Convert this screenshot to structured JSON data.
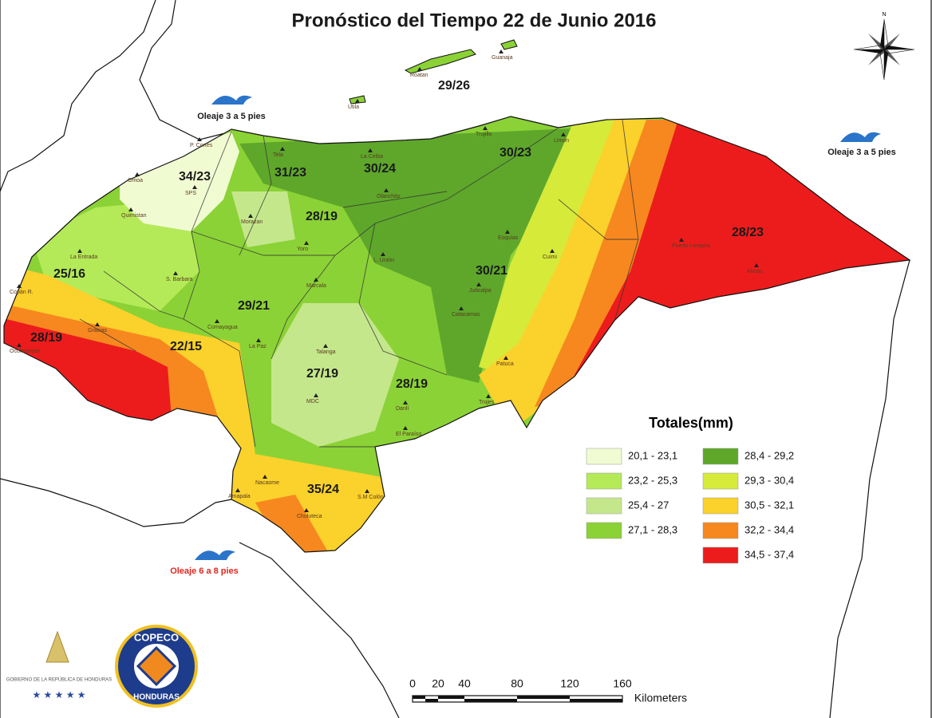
{
  "title": "Pronóstico del Tiempo  22 de Junio 2016",
  "forecasts": [
    "34/23",
    "31/23",
    "30/24",
    "30/23",
    "29/26",
    "28/19",
    "25/16",
    "30/21",
    "28/23",
    "29/21",
    "28/19",
    "22/15",
    "27/19",
    "28/19",
    "35/24"
  ],
  "waves": [
    "Oleaje 3 a 5 pies",
    "Oleaje 3 a 5 pies",
    "Oleaje 6 a 8 pies"
  ],
  "places": [
    "Roatan",
    "Guanaja",
    "Utila",
    "P. Cortes",
    "Tela",
    "La Ceiba",
    "Trujillo",
    "Limón",
    "Omoa",
    "SPS",
    "Quimistan",
    "Morazan",
    "Olanchito",
    "Yoro",
    "La Entrada",
    "S. Barbara",
    "Copán R.",
    "Gracias",
    "Marcala",
    "Comayagua",
    "La Paz",
    "L. Unión",
    "Cuimi",
    "Catacamas",
    "Juticalpa",
    "Talanga",
    "MDC",
    "Danlí",
    "El Paraíso",
    "Choluteca",
    "Nacaome",
    "Amapala",
    "S.M Colón",
    "Patuca",
    "Trojes",
    "Ocotepeque",
    "Puerto Lempira",
    "Ahuas",
    "Esquías"
  ],
  "legend": {
    "title": "Totales(mm)",
    "items": [
      {
        "label": "20,1 - 23,1",
        "color": "#f1fbd2"
      },
      {
        "label": "23,2 - 25,3",
        "color": "#b4ea58"
      },
      {
        "label": "25,4 - 27",
        "color": "#c5e78c"
      },
      {
        "label": "27,1 - 28,3",
        "color": "#8bd236"
      },
      {
        "label": "28,4 - 29,2",
        "color": "#5ea72b"
      },
      {
        "label": "29,3 - 30,4",
        "color": "#d6ea3a"
      },
      {
        "label": "30,5 - 32,1",
        "color": "#fbd12b"
      },
      {
        "label": "32,2 - 34,4",
        "color": "#f6881f"
      },
      {
        "label": "34,5 - 37,4",
        "color": "#ed1c1c"
      }
    ]
  },
  "scale": {
    "ticks": [
      "0",
      "20",
      "40",
      "80",
      "120",
      "160"
    ],
    "unit": "Kilometers"
  },
  "compass": "N",
  "logos": {
    "government": "GOBIERNO DE LA REPÚBLICA DE HONDURAS",
    "copeco": "COPECO",
    "country": "HONDURAS"
  }
}
